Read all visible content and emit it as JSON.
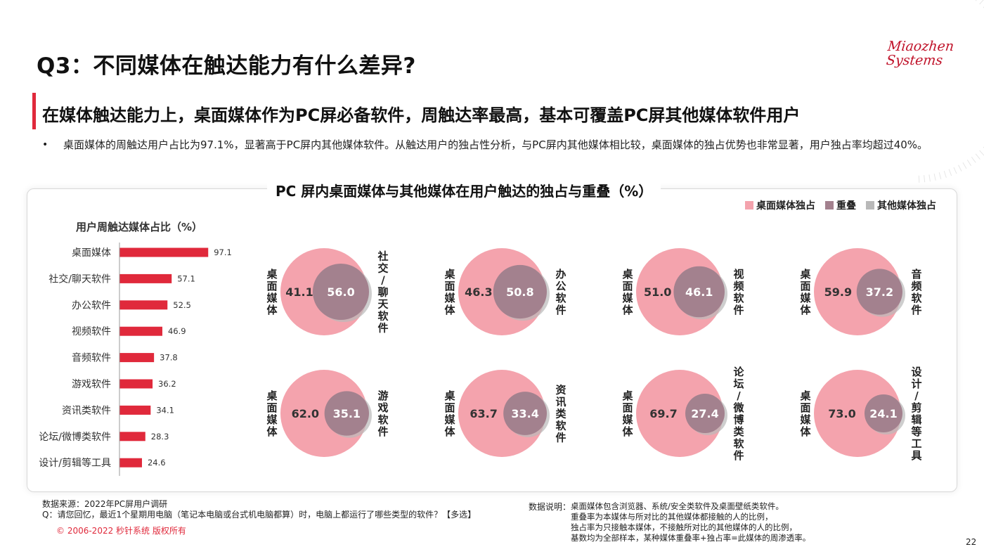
{
  "title": "Q3：不同媒体在触达能力有什么差异?",
  "logo": {
    "line1": "Miaozhen",
    "line2": "Systems"
  },
  "subtitle": "在媒体触达能力上，桌面媒体作为PC屏必备软件，周触达率最高，基本可覆盖PC屏其他媒体软件用户",
  "bullet": {
    "marker": "•",
    "text": "桌面媒体的周触达用户占比为97.1%，显著高于PC屏内其他媒体软件。从触达用户的独占性分析，与PC屏内其他媒体相比较，桌面媒体的独占优势也非常显著，用户独占率均超过40%。"
  },
  "panel_title": "PC 屏内桌面媒体与其他媒体在用户触达的独占与重叠（%）",
  "legend": [
    {
      "label": "桌面媒体独占",
      "color": "#f4a3ad"
    },
    {
      "label": "重叠",
      "color": "#a3818e"
    },
    {
      "label": "其他媒体独占",
      "color": "#b9b9b9"
    }
  ],
  "colors": {
    "accent": "#e0293b",
    "bar": "#e0293b",
    "desktop": "#f4a3ad",
    "overlap": "#a3818e",
    "other": "#b9b9b9"
  },
  "chart_data": [
    {
      "type": "bar",
      "title": "用户周触达媒体占比（%）",
      "categories": [
        "桌面媒体",
        "社交/聊天软件",
        "办公软件",
        "视频软件",
        "音频软件",
        "游戏软件",
        "资讯类软件",
        "论坛/微博类软件",
        "设计/剪辑等工具"
      ],
      "values": [
        97.1,
        57.1,
        52.5,
        46.9,
        37.8,
        36.2,
        34.1,
        28.3,
        24.6
      ],
      "orientation": "horizontal",
      "xlim": [
        0,
        100
      ]
    },
    {
      "type": "venn",
      "left_label": "桌面媒体",
      "pairs": [
        {
          "other": "社交/聊天软件",
          "desktop_exclusive": 41.1,
          "overlap": 56.0
        },
        {
          "other": "办公软件",
          "desktop_exclusive": 46.3,
          "overlap": 50.8
        },
        {
          "other": "视频软件",
          "desktop_exclusive": 51.0,
          "overlap": 46.1
        },
        {
          "other": "音频软件",
          "desktop_exclusive": 59.9,
          "overlap": 37.2
        },
        {
          "other": "游戏软件",
          "desktop_exclusive": 62.0,
          "overlap": 35.1
        },
        {
          "other": "资讯类软件",
          "desktop_exclusive": 63.7,
          "overlap": 33.4
        },
        {
          "other": "论坛/微博类软件",
          "desktop_exclusive": 69.7,
          "overlap": 27.4
        },
        {
          "other": "设计/剪辑等工具",
          "desktop_exclusive": 73.0,
          "overlap": 24.1
        }
      ]
    }
  ],
  "footer": {
    "source": "数据来源：2022年PC屏用户调研",
    "question": "Q：请您回忆，最近1个星期用电脑（笔记本电脑或台式机电脑都算）时，电脑上都运行了哪些类型的软件？【多选】",
    "copyright": "© 2006-2022 秒针系统 版权所有",
    "note_label": "数据说明：",
    "notes": [
      "桌面媒体包含浏览器、系统/安全类软件及桌面壁纸类软件。",
      "重叠率为本媒体与所对比的其他媒体都接触的人的比例，",
      "独占率为只接触本媒体，不接触所对比的其他媒体的人的比例，",
      "基数均为全部样本，某种媒体重叠率+独占率=此媒体的周渗透率。"
    ],
    "page_number": "22"
  }
}
